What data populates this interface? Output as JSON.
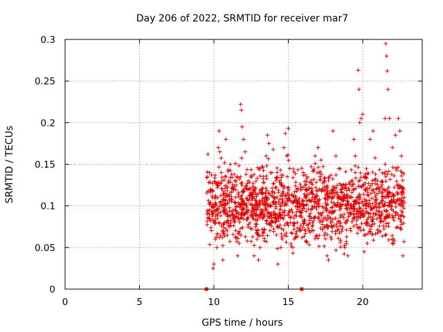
{
  "chart_data": {
    "type": "scatter",
    "title": "Day 206 of 2022, SRMTID for receiver mar7",
    "xlabel": "GPS time / hours",
    "ylabel": "SRMTID / TECUs",
    "xlim": [
      0,
      24
    ],
    "ylim": [
      0,
      0.3
    ],
    "xticks": [
      0,
      5,
      10,
      15,
      20
    ],
    "xtick_labels": [
      "0",
      "5",
      "10",
      "15",
      "20"
    ],
    "yticks": [
      0,
      0.05,
      0.1,
      0.15,
      0.2,
      0.25,
      0.3
    ],
    "ytick_labels": [
      "0",
      "0.05",
      "0.1",
      "0.15",
      "0.2",
      "0.25",
      "0.3"
    ],
    "grid": true,
    "marker": "+",
    "color": "#e00000",
    "gap_markers": [
      9.5,
      15.9
    ],
    "series": [
      {
        "name": "SRMTID",
        "x_range": [
          9.5,
          22.8
        ],
        "envelope_note": "dense scatter, main band 0.05-0.15 TECU",
        "points": [
          [
            9.6,
            0.162
          ],
          [
            9.7,
            0.14
          ],
          [
            9.8,
            0.12
          ],
          [
            9.9,
            0.11
          ],
          [
            9.95,
            0.025
          ],
          [
            10.0,
            0.03
          ],
          [
            10.1,
            0.06
          ],
          [
            10.2,
            0.05
          ],
          [
            10.3,
            0.17
          ],
          [
            10.35,
            0.19
          ],
          [
            10.4,
            0.165
          ],
          [
            10.5,
            0.14
          ],
          [
            10.6,
            0.035
          ],
          [
            10.7,
            0.095
          ],
          [
            10.8,
            0.18
          ],
          [
            11.0,
            0.13
          ],
          [
            11.1,
            0.15
          ],
          [
            11.3,
            0.12
          ],
          [
            11.5,
            0.125
          ],
          [
            11.6,
            0.04
          ],
          [
            11.7,
            0.055
          ],
          [
            11.8,
            0.222
          ],
          [
            11.85,
            0.215
          ],
          [
            11.9,
            0.195
          ],
          [
            12.0,
            0.18
          ],
          [
            12.1,
            0.165
          ],
          [
            12.3,
            0.13
          ],
          [
            12.5,
            0.115
          ],
          [
            12.7,
            0.04
          ],
          [
            12.9,
            0.06
          ],
          [
            13.0,
            0.035
          ],
          [
            13.1,
            0.05
          ],
          [
            13.3,
            0.09
          ],
          [
            13.5,
            0.16
          ],
          [
            13.6,
            0.185
          ],
          [
            13.7,
            0.175
          ],
          [
            13.9,
            0.14
          ],
          [
            14.0,
            0.11
          ],
          [
            14.1,
            0.08
          ],
          [
            14.2,
            0.065
          ],
          [
            14.3,
            0.03
          ],
          [
            14.5,
            0.05
          ],
          [
            14.6,
            0.06
          ],
          [
            14.7,
            0.17
          ],
          [
            14.8,
            0.187
          ],
          [
            14.9,
            0.16
          ],
          [
            15.0,
            0.193
          ],
          [
            15.1,
            0.145
          ],
          [
            15.3,
            0.05
          ],
          [
            15.4,
            0.06
          ],
          [
            15.6,
            0.08
          ],
          [
            15.8,
            0.1
          ],
          [
            16.0,
            0.14
          ],
          [
            16.2,
            0.12
          ],
          [
            16.4,
            0.07
          ],
          [
            16.6,
            0.075
          ],
          [
            16.8,
            0.16
          ],
          [
            17.0,
            0.17
          ],
          [
            17.2,
            0.155
          ],
          [
            17.4,
            0.13
          ],
          [
            17.6,
            0.04
          ],
          [
            17.7,
            0.035
          ],
          [
            17.9,
            0.06
          ],
          [
            18.0,
            0.19
          ],
          [
            18.2,
            0.16
          ],
          [
            18.4,
            0.145
          ],
          [
            18.6,
            0.12
          ],
          [
            18.8,
            0.05
          ],
          [
            19.0,
            0.04
          ],
          [
            19.2,
            0.07
          ],
          [
            19.4,
            0.18
          ],
          [
            19.5,
            0.16
          ],
          [
            19.7,
            0.263
          ],
          [
            19.75,
            0.24
          ],
          [
            19.8,
            0.2
          ],
          [
            19.9,
            0.205
          ],
          [
            20.0,
            0.21
          ],
          [
            20.1,
            0.045
          ],
          [
            20.3,
            0.055
          ],
          [
            20.5,
            0.18
          ],
          [
            20.7,
            0.19
          ],
          [
            20.9,
            0.12
          ],
          [
            21.1,
            0.07
          ],
          [
            21.3,
            0.09
          ],
          [
            21.5,
            0.205
          ],
          [
            21.55,
            0.295
          ],
          [
            21.6,
            0.28
          ],
          [
            21.65,
            0.262
          ],
          [
            21.7,
            0.24
          ],
          [
            21.8,
            0.205
          ],
          [
            22.0,
            0.17
          ],
          [
            22.2,
            0.185
          ],
          [
            22.4,
            0.205
          ],
          [
            22.5,
            0.19
          ],
          [
            22.6,
            0.16
          ],
          [
            22.7,
            0.04
          ],
          [
            22.8,
            0.11
          ]
        ]
      }
    ]
  }
}
